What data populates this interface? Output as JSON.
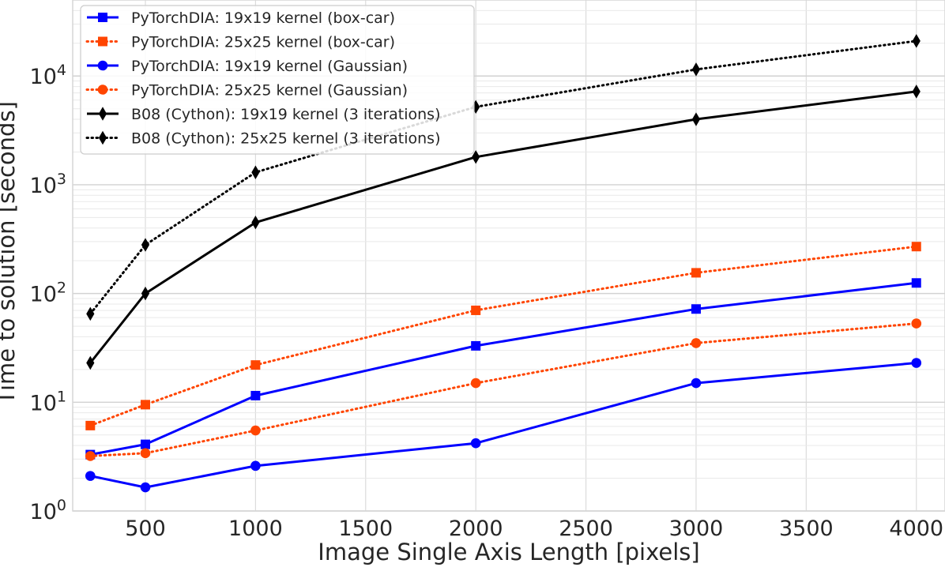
{
  "chart_data": {
    "type": "line",
    "title": "",
    "xlabel": "Image Single Axis Length [pixels]",
    "ylabel": "Time to solution [seconds]",
    "yscale": "log",
    "xlim": [
      170,
      4130
    ],
    "ylim": [
      1,
      50000
    ],
    "x_ticks": [
      500,
      1000,
      1500,
      2000,
      2500,
      3000,
      3500,
      4000
    ],
    "x_tick_labels": [
      "500",
      "1000",
      "1500",
      "2000",
      "2500",
      "3000",
      "3500",
      "4000"
    ],
    "y_ticks": [
      {
        "value": 1,
        "base": "10",
        "exp": "0"
      },
      {
        "value": 10,
        "base": "10",
        "exp": "1"
      },
      {
        "value": 100,
        "base": "10",
        "exp": "2"
      },
      {
        "value": 1000,
        "base": "10",
        "exp": "3"
      },
      {
        "value": 10000,
        "base": "10",
        "exp": "4"
      }
    ],
    "grid": true,
    "legend_position": "top-left",
    "x": [
      250,
      500,
      1000,
      2000,
      3000,
      4000
    ],
    "series": [
      {
        "name": "PyTorchDIA: 19x19 kernel (box-car)",
        "color": "#0000ff",
        "dash": "solid",
        "marker": "square",
        "values": [
          3.3,
          4.1,
          11.5,
          33,
          72,
          125
        ]
      },
      {
        "name": "PyTorchDIA: 25x25 kernel (box-car)",
        "color": "#ff4500",
        "dash": "dotted",
        "marker": "square",
        "values": [
          6.1,
          9.5,
          22,
          70,
          155,
          270
        ]
      },
      {
        "name": "PyTorchDIA: 19x19 kernel (Gaussian)",
        "color": "#0000ff",
        "dash": "solid",
        "marker": "circle",
        "values": [
          2.1,
          1.65,
          2.6,
          4.2,
          15,
          23
        ]
      },
      {
        "name": "PyTorchDIA: 25x25 kernel (Gaussian)",
        "color": "#ff4500",
        "dash": "dotted",
        "marker": "circle",
        "values": [
          3.2,
          3.4,
          5.5,
          15,
          35,
          53
        ]
      },
      {
        "name": "B08 (Cython): 19x19 kernel (3 iterations)",
        "color": "#000000",
        "dash": "solid",
        "marker": "diamond",
        "values": [
          23,
          100,
          450,
          1800,
          4000,
          7200
        ]
      },
      {
        "name": "B08 (Cython): 25x25 kernel (3 iterations)",
        "color": "#000000",
        "dash": "dotted",
        "marker": "diamond",
        "values": [
          65,
          280,
          1300,
          5200,
          11500,
          21000
        ]
      }
    ]
  }
}
